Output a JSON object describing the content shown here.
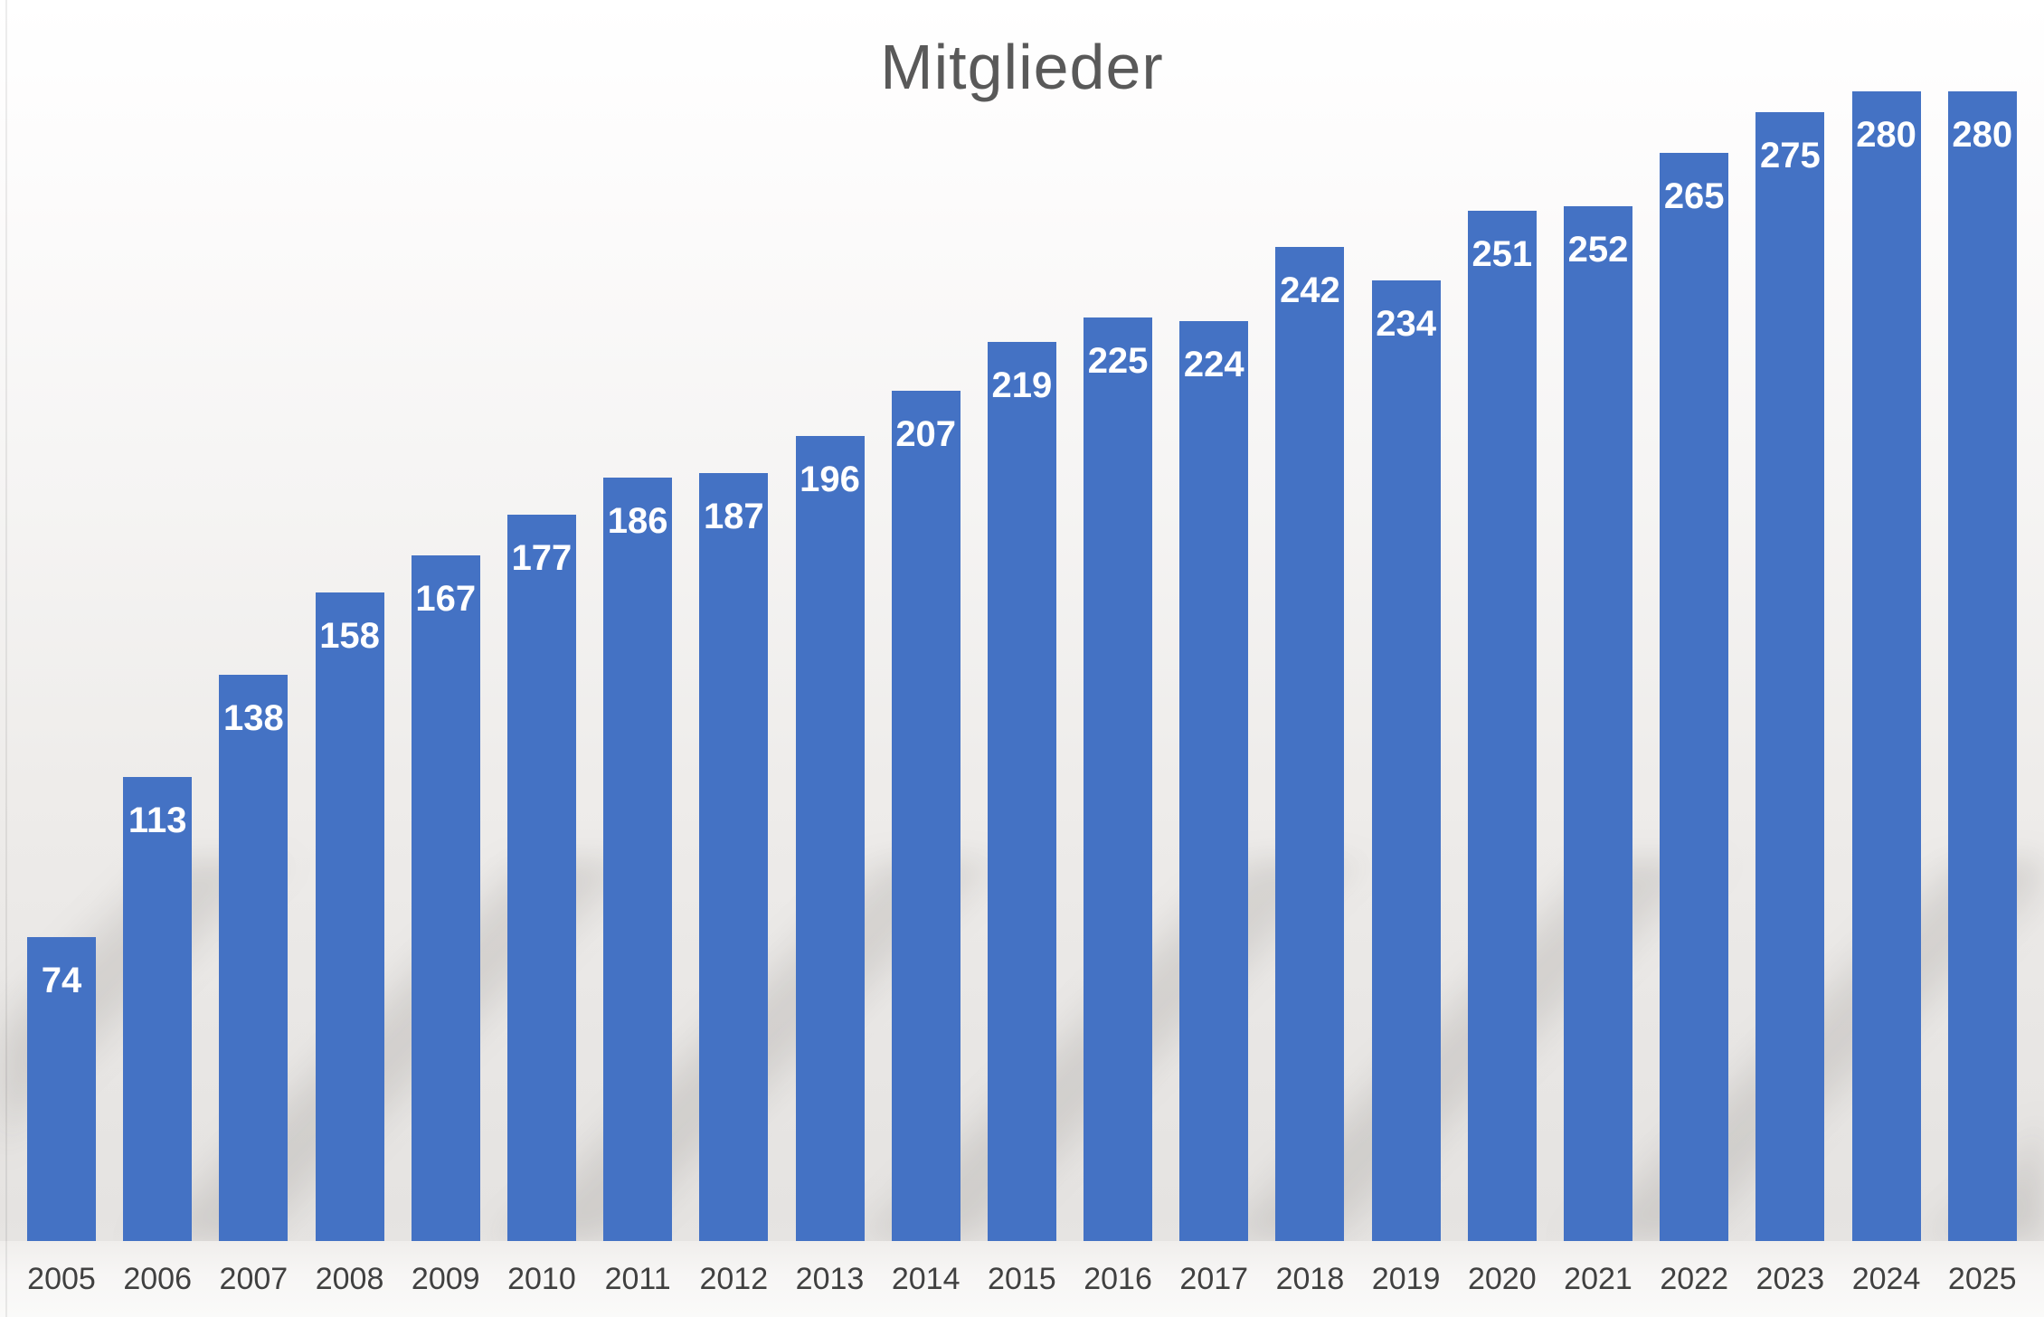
{
  "chart_data": {
    "type": "bar",
    "title": "Mitglieder",
    "categories": [
      "2005",
      "2006",
      "2007",
      "2008",
      "2009",
      "2010",
      "2011",
      "2012",
      "2013",
      "2014",
      "2015",
      "2016",
      "2017",
      "2018",
      "2019",
      "2020",
      "2021",
      "2022",
      "2023",
      "2024",
      "2025"
    ],
    "values": [
      74,
      113,
      138,
      158,
      167,
      177,
      186,
      187,
      196,
      207,
      219,
      225,
      224,
      242,
      234,
      251,
      252,
      265,
      275,
      280,
      280
    ],
    "xlabel": "",
    "ylabel": "",
    "ylim": [
      0,
      280
    ],
    "gridlines": false,
    "legend": "none",
    "y_axis_visible": false,
    "data_label_position": "inside-end",
    "colors": {
      "bar": "#4472C4",
      "value_label": "#FFFFFF",
      "axis_label": "#404040",
      "title": "#595959"
    }
  }
}
